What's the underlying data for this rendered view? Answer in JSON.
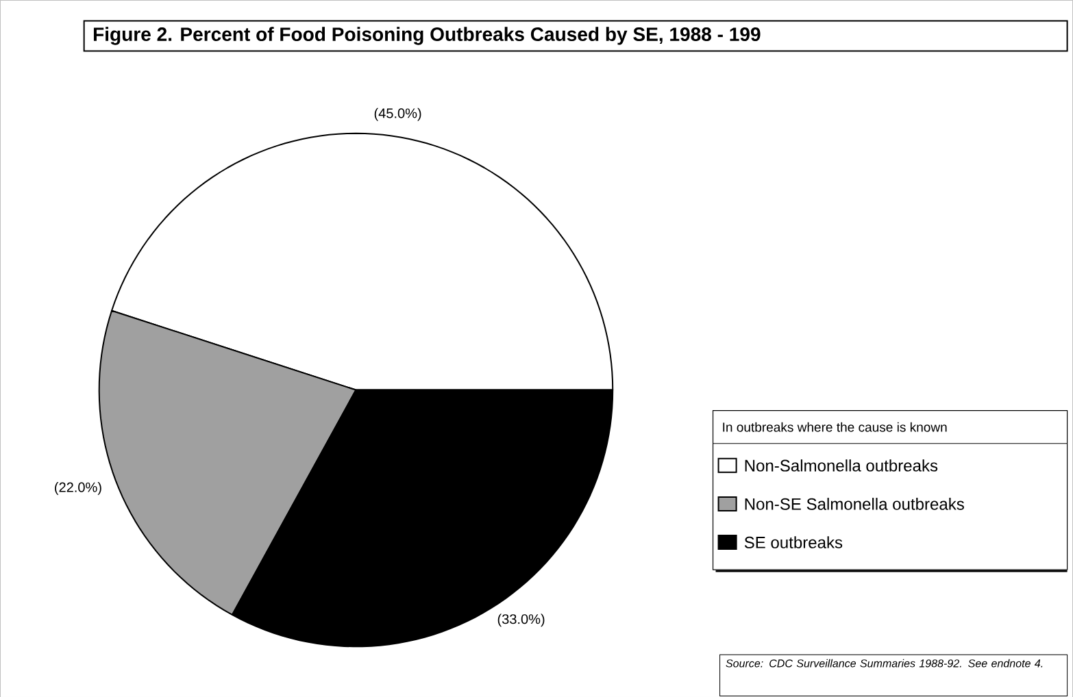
{
  "chart_data": {
    "type": "pie",
    "title": "Figure 2.  Percent of Food Poisoning Outbreaks Caused by SE, 1988 - 199",
    "categories": [
      "Non-Salmonella outbreaks",
      "Non-SE Salmonella outbreaks",
      "SE outbreaks"
    ],
    "values": [
      45.0,
      22.0,
      33.0
    ],
    "value_labels": [
      "(45.0%)",
      "(22.0%)",
      "(33.0%)"
    ],
    "colors": [
      "#ffffff",
      "#a0a0a0",
      "#000000"
    ],
    "legend": "right",
    "legend_title": "In outbreaks where the cause is known",
    "annotations": [
      "*Source:  CDC Surveillance Summaries 1988-92.  See endnote 4.*"
    ]
  }
}
